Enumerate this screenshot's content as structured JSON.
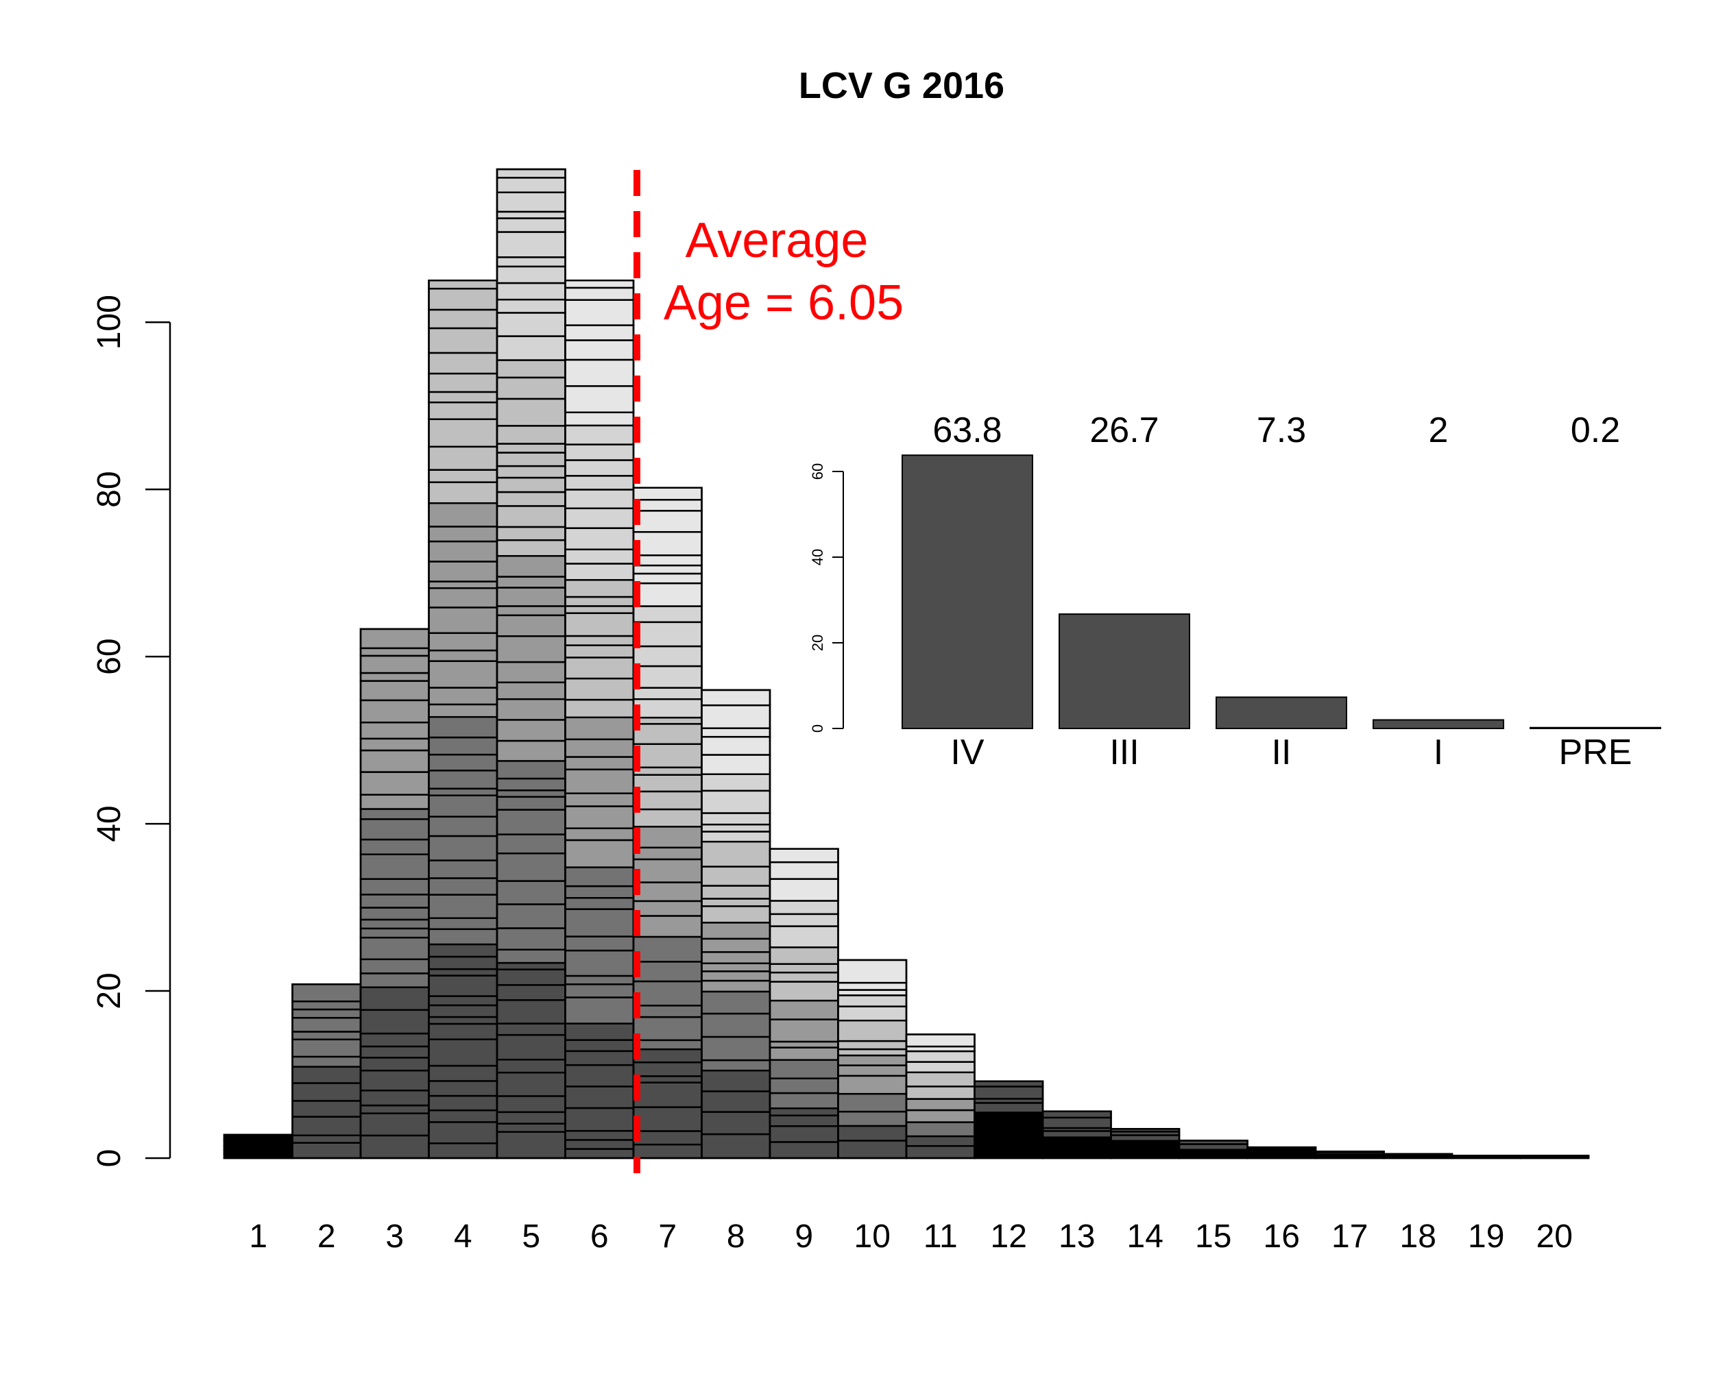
{
  "chart_data": [
    {
      "type": "bar",
      "title": "LCV G 2016",
      "xlabel": "",
      "ylabel": "",
      "categories": [
        "1",
        "2",
        "3",
        "4",
        "5",
        "6",
        "7",
        "8",
        "9",
        "10",
        "11",
        "12",
        "13",
        "14",
        "15",
        "16",
        "17",
        "18",
        "19",
        "20"
      ],
      "values": [
        2.8,
        20.8,
        63.3,
        105,
        118.3,
        105,
        80.2,
        56,
        37,
        23.7,
        14.8,
        9.2,
        5.6,
        3.5,
        2.1,
        1.3,
        0.8,
        0.5,
        0.3,
        0.3
      ],
      "ylim": [
        0,
        118.3
      ],
      "yticks": [
        0,
        20,
        40,
        60,
        80,
        100
      ],
      "stacked": true,
      "annotation": {
        "x_value": 6.55,
        "line1": "Average",
        "line2": "Age = 6.05",
        "color": "#ff0000"
      },
      "fill_colors": [
        "#000000",
        "#4d4d4d",
        "#737373",
        "#999999",
        "#bfbfbf",
        "#d4d4d4",
        "#e6e6e6"
      ]
    },
    {
      "type": "bar",
      "categories": [
        "IV",
        "III",
        "II",
        "I",
        "PRE"
      ],
      "values": [
        63.8,
        26.7,
        7.3,
        2,
        0.2
      ],
      "value_labels": [
        "63.8",
        "26.7",
        "7.3",
        "2",
        "0.2"
      ],
      "ylim": [
        0,
        60
      ],
      "yticks": [
        0,
        20,
        40,
        60
      ],
      "bar_color": "#4d4d4d"
    }
  ]
}
